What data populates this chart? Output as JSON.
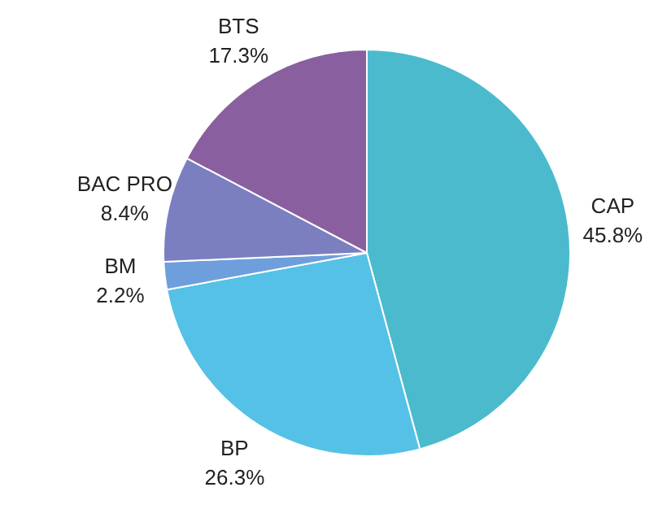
{
  "chart_data": {
    "type": "pie",
    "categories": [
      "CAP",
      "BP",
      "BM",
      "BAC PRO",
      "BTS"
    ],
    "values": [
      45.8,
      26.3,
      2.2,
      8.4,
      17.3
    ],
    "colors": [
      "#4bbacd",
      "#55c1e6",
      "#6e9fdc",
      "#7b7fc0",
      "#8a5f9f"
    ],
    "value_labels": [
      "45.8%",
      "26.3%",
      "2.2%",
      "8.4%",
      "17.3%"
    ],
    "legend": false
  }
}
